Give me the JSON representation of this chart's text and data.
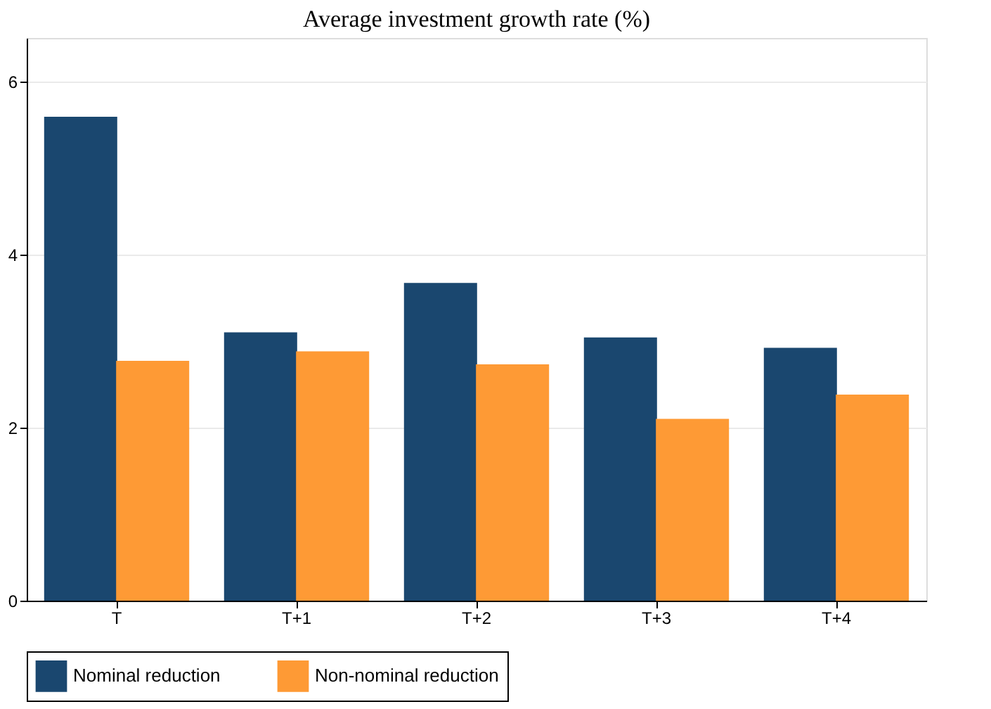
{
  "chart_data": {
    "type": "bar",
    "title": "Average investment growth rate (%)",
    "categories": [
      "T",
      "T+1",
      "T+2",
      "T+3",
      "T+4"
    ],
    "series": [
      {
        "name": "Nominal reduction",
        "color": "#1a476f",
        "values": [
          5.59,
          3.1,
          3.67,
          3.04,
          2.92
        ]
      },
      {
        "name": "Non-nominal reduction",
        "color": "#fe9a35",
        "values": [
          2.77,
          2.88,
          2.73,
          2.1,
          2.38
        ]
      }
    ],
    "ylim": [
      0,
      6.5
    ],
    "yticks": [
      0,
      2,
      4,
      6
    ],
    "grid": "y",
    "legend": "bottom"
  }
}
